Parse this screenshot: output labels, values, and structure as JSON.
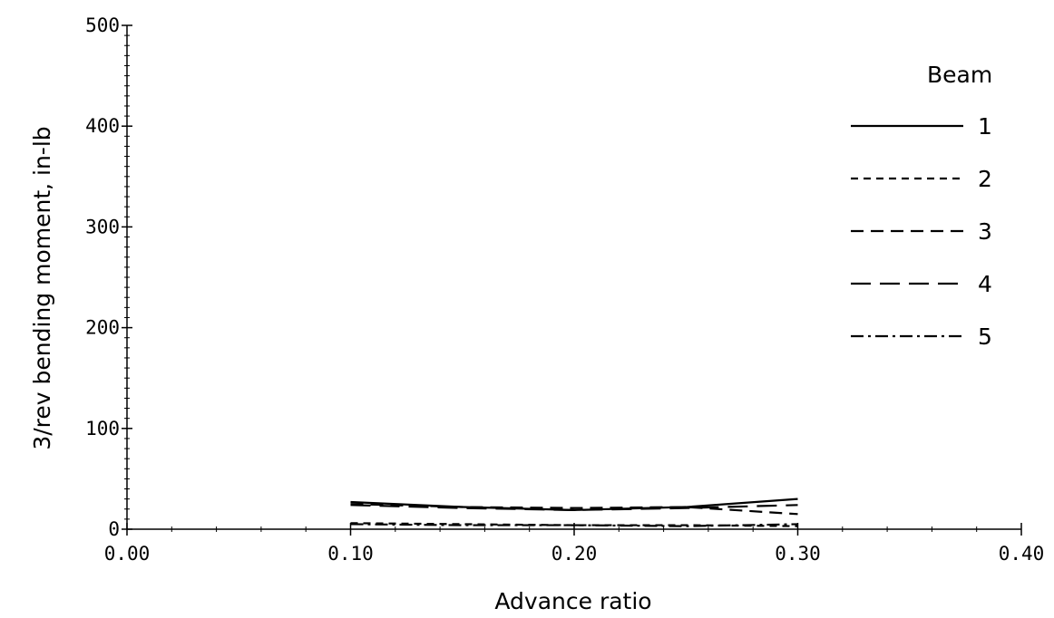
{
  "chart_data": {
    "type": "line",
    "title": "",
    "xlabel": "Advance ratio",
    "ylabel": "3/rev bending moment, in-lb",
    "xlim": [
      0.0,
      0.4
    ],
    "ylim": [
      0,
      500
    ],
    "x_ticks": [
      "0.00",
      "0.10",
      "0.20",
      "0.30",
      "0.40"
    ],
    "y_ticks": [
      "0",
      "100",
      "200",
      "300",
      "400",
      "500"
    ],
    "grid": false,
    "legend": {
      "title": "Beam",
      "placement": "right"
    },
    "x": [
      0.1,
      0.15,
      0.2,
      0.25,
      0.3
    ],
    "series": [
      {
        "name": "1",
        "dash": "solid",
        "values": [
          27,
          22,
          19,
          22,
          30
        ]
      },
      {
        "name": "2",
        "dash": "short",
        "values": [
          6,
          5,
          4,
          4,
          3
        ]
      },
      {
        "name": "3",
        "dash": "medium",
        "values": [
          25,
          22,
          21,
          22,
          15
        ]
      },
      {
        "name": "4",
        "dash": "long",
        "values": [
          24,
          21,
          19,
          21,
          24
        ]
      },
      {
        "name": "5",
        "dash": "dashdot",
        "values": [
          5,
          4,
          4,
          3,
          5
        ]
      }
    ]
  }
}
